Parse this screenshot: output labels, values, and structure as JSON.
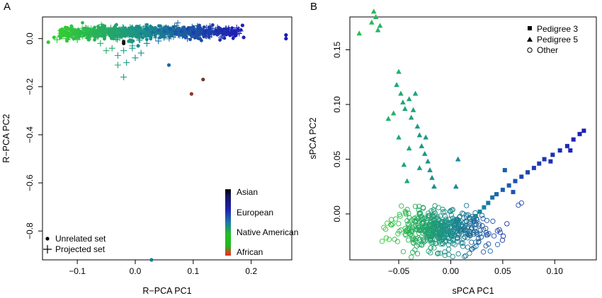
{
  "chart_data": [
    {
      "type": "scatter",
      "panel_label": "A",
      "xlabel": "R−PCA PC1",
      "ylabel": "R−PCA PC2",
      "xlim": [
        -0.16,
        0.27
      ],
      "ylim": [
        -0.92,
        0.09
      ],
      "xticks": [
        -0.1,
        0.0,
        0.1,
        0.2
      ],
      "xtick_labels": [
        "−0.1",
        "0.0",
        "0.1",
        "0.2"
      ],
      "yticks": [
        0.0,
        -0.2,
        -0.4,
        -0.6,
        -0.8
      ],
      "ytick_labels": [
        "0.0",
        "−0.2",
        "−0.4",
        "−0.6",
        "−0.8"
      ],
      "legend": {
        "position": "bottom-left",
        "entries": [
          {
            "label": "Unrelated set",
            "marker": "filled-circle"
          },
          {
            "label": "Projected set",
            "marker": "plus"
          }
        ]
      },
      "colorbar": {
        "position": "bottom-right",
        "labels": [
          "Asian",
          "European",
          "Native American",
          "African"
        ],
        "colors": [
          "#000000",
          "#1f1fb4",
          "#22b822",
          "#ff2020"
        ]
      },
      "series": [
        {
          "marker": "filled-circle",
          "points": [
            [
              -0.15,
              -0.015,
              "#33cc33"
            ],
            [
              -0.14,
              0.005,
              "#33cc33"
            ],
            [
              -0.13,
              0.01,
              "#30c840"
            ],
            [
              -0.11,
              0.015,
              "#2ec24a"
            ],
            [
              -0.09,
              0.02,
              "#2bbd52"
            ],
            [
              -0.08,
              0.04,
              "#2bbd52"
            ],
            [
              -0.06,
              0.02,
              "#26b462"
            ],
            [
              -0.05,
              0.035,
              "#24b06a"
            ],
            [
              -0.03,
              0.025,
              "#20a878"
            ],
            [
              -0.02,
              0.04,
              "#1ea080"
            ],
            [
              -0.01,
              0.03,
              "#1c9888"
            ],
            [
              0.0,
              0.04,
              "#1a9090"
            ],
            [
              0.005,
              0.05,
              "#1a8896"
            ],
            [
              0.01,
              0.02,
              "#18809c"
            ],
            [
              0.02,
              0.04,
              "#1778a2"
            ],
            [
              0.03,
              0.025,
              "#1670a8"
            ],
            [
              0.04,
              0.035,
              "#1868ae"
            ],
            [
              0.05,
              0.03,
              "#1a60b0"
            ],
            [
              0.06,
              0.04,
              "#1c58b2"
            ],
            [
              0.07,
              0.02,
              "#1d50b4"
            ],
            [
              0.08,
              0.03,
              "#1e48b4"
            ],
            [
              0.09,
              0.04,
              "#1e40b4"
            ],
            [
              0.1,
              0.025,
              "#1e38b4"
            ],
            [
              0.12,
              0.03,
              "#1e30b4"
            ],
            [
              0.14,
              0.03,
              "#1e28b4"
            ],
            [
              0.15,
              0.035,
              "#1e24b4"
            ],
            [
              0.17,
              0.025,
              "#1e20b4"
            ],
            [
              0.185,
              0.055,
              "#1e20b4"
            ],
            [
              0.187,
              0.005,
              "#1e20b4"
            ],
            [
              0.26,
              0.015,
              "#1a1ab0"
            ],
            [
              0.26,
              0.0,
              "#1a1ab0"
            ],
            [
              0.005,
              -0.03,
              "#1a8a90"
            ],
            [
              -0.004,
              -0.01,
              "#1b9488"
            ],
            [
              -0.02,
              -0.012,
              "#202020"
            ],
            [
              0.058,
              -0.11,
              "#1f6aa0"
            ],
            [
              0.097,
              -0.23,
              "#8a3a2a"
            ],
            [
              0.117,
              -0.17,
              "#6a3a2a"
            ],
            [
              0.028,
              -0.92,
              "#1a7a8a"
            ],
            [
              -0.02,
              -0.02,
              "#111111"
            ]
          ]
        },
        {
          "marker": "plus",
          "points": [
            [
              -0.135,
              -0.005,
              "#33cc33"
            ],
            [
              -0.12,
              0.0,
              "#30c63c"
            ],
            [
              -0.1,
              -0.005,
              "#2cbe4c"
            ],
            [
              -0.06,
              -0.02,
              "#26b462"
            ],
            [
              -0.05,
              -0.05,
              "#24ac6a"
            ],
            [
              -0.04,
              -0.04,
              "#22a872"
            ],
            [
              -0.03,
              -0.07,
              "#20a47a"
            ],
            [
              -0.02,
              -0.05,
              "#1ea080"
            ],
            [
              -0.015,
              -0.1,
              "#1c9c84"
            ],
            [
              -0.03,
              -0.11,
              "#20a47a"
            ],
            [
              -0.02,
              -0.16,
              "#1c9c84"
            ],
            [
              -0.005,
              -0.04,
              "#1a9688"
            ],
            [
              0.0,
              -0.08,
              "#1a9090"
            ],
            [
              0.01,
              -0.06,
              "#188a94"
            ],
            [
              0.02,
              -0.02,
              "#17829a"
            ],
            [
              0.04,
              -0.01,
              "#1770a8"
            ],
            [
              0.07,
              0.03,
              "#1d4cb4"
            ],
            [
              0.09,
              0.0,
              "#1e40b4"
            ],
            [
              0.12,
              0.02,
              "#1e34b4"
            ],
            [
              0.15,
              0.01,
              "#1e28b4"
            ],
            [
              0.17,
              0.015,
              "#1e20b4"
            ],
            [
              0.175,
              0.045,
              "#1e20b4"
            ],
            [
              -0.005,
              -0.03,
              "#1a9288"
            ]
          ]
        }
      ]
    },
    {
      "type": "scatter",
      "panel_label": "B",
      "xlabel": "sPCA PC1",
      "ylabel": "sPCA PC2",
      "xlim": [
        -0.097,
        0.14
      ],
      "ylim": [
        -0.042,
        0.18
      ],
      "xticks": [
        -0.05,
        0.0,
        0.05,
        0.1
      ],
      "xtick_labels": [
        "−0.05",
        "0.00",
        "0.05",
        "0.10"
      ],
      "yticks": [
        0.0,
        0.05,
        0.1,
        0.15
      ],
      "ytick_labels": [
        "0.00",
        "0.05",
        "0.10",
        "0.15"
      ],
      "legend": {
        "position": "top-right",
        "entries": [
          {
            "label": "Pedigree 3",
            "marker": "filled-square"
          },
          {
            "label": "Pedigree 5",
            "marker": "filled-triangle"
          },
          {
            "label": "Other",
            "marker": "open-circle"
          }
        ]
      },
      "series": [
        {
          "name": "Pedigree 3",
          "marker": "filled-square",
          "points": [
            [
              0.128,
              0.076,
              "#1e20b4"
            ],
            [
              0.124,
              0.073,
              "#1e22b4"
            ],
            [
              0.118,
              0.068,
              "#1e24b4"
            ],
            [
              0.112,
              0.062,
              "#1e28b4"
            ],
            [
              0.105,
              0.058,
              "#1e2cb4"
            ],
            [
              0.098,
              0.054,
              "#1e30b4"
            ],
            [
              0.09,
              0.05,
              "#1e34b4"
            ],
            [
              0.085,
              0.046,
              "#1e38b4"
            ],
            [
              0.08,
              0.042,
              "#1e3cb4"
            ],
            [
              0.074,
              0.038,
              "#1d44b4"
            ],
            [
              0.068,
              0.034,
              "#1d48b4"
            ],
            [
              0.062,
              0.03,
              "#1c50b2"
            ],
            [
              0.056,
              0.026,
              "#1c58b2"
            ],
            [
              0.05,
              0.022,
              "#1a60b0"
            ],
            [
              0.044,
              0.018,
              "#1868ae"
            ],
            [
              0.04,
              0.015,
              "#1770a8"
            ],
            [
              0.036,
              0.01,
              "#1678a4"
            ],
            [
              0.032,
              0.006,
              "#1680a0"
            ],
            [
              0.028,
              0.002,
              "#17889a"
            ],
            [
              0.024,
              -0.002,
              "#188a94"
            ],
            [
              0.052,
              0.04,
              "#1a5cb0"
            ],
            [
              0.115,
              0.058,
              "#1e28b4"
            ],
            [
              0.096,
              0.048,
              "#1e32b4"
            ],
            [
              0.06,
              0.02,
              "#1c54b2"
            ]
          ]
        },
        {
          "name": "Pedigree 5",
          "marker": "filled-triangle",
          "points": [
            [
              -0.088,
              0.165,
              "#2bbd52"
            ],
            [
              -0.076,
              0.175,
              "#28b85a"
            ],
            [
              -0.074,
              0.185,
              "#28b85a"
            ],
            [
              -0.072,
              0.18,
              "#26b462"
            ],
            [
              -0.07,
              0.168,
              "#26b462"
            ],
            [
              -0.068,
              0.172,
              "#26b462"
            ],
            [
              -0.06,
              0.087,
              "#24b06a"
            ],
            [
              -0.055,
              0.092,
              "#24ae6e"
            ],
            [
              -0.052,
              0.118,
              "#22a872"
            ],
            [
              -0.048,
              0.11,
              "#22a872"
            ],
            [
              -0.046,
              0.102,
              "#22a478"
            ],
            [
              -0.044,
              0.096,
              "#22a478"
            ],
            [
              -0.04,
              0.105,
              "#20a47a"
            ],
            [
              -0.038,
              0.088,
              "#20a07e"
            ],
            [
              -0.036,
              0.095,
              "#20a07e"
            ],
            [
              -0.034,
              0.11,
              "#1ea080"
            ],
            [
              -0.032,
              0.08,
              "#1e9c84"
            ],
            [
              -0.03,
              0.072,
              "#1c9a86"
            ],
            [
              -0.028,
              0.062,
              "#1c9888"
            ],
            [
              -0.025,
              0.055,
              "#1c9688"
            ],
            [
              -0.022,
              0.048,
              "#1a9488"
            ],
            [
              -0.02,
              0.04,
              "#1a928c"
            ],
            [
              -0.018,
              0.033,
              "#1a908e"
            ],
            [
              -0.016,
              0.025,
              "#1a8e90"
            ],
            [
              -0.04,
              0.06,
              "#20a47a"
            ],
            [
              -0.045,
              0.045,
              "#22a478"
            ],
            [
              -0.05,
              0.07,
              "#22a872"
            ],
            [
              -0.042,
              0.03,
              "#22a478"
            ],
            [
              -0.03,
              0.042,
              "#1e9c84"
            ],
            [
              -0.024,
              0.07,
              "#1c9888"
            ],
            [
              -0.05,
              0.13,
              "#24ae6e"
            ],
            [
              0.005,
              0.025,
              "#188a94"
            ],
            [
              0.007,
              0.05,
              "#1888a0"
            ]
          ]
        },
        {
          "name": "Other",
          "marker": "open-circle",
          "cloud": {
            "count": 520,
            "x_range": [
              -0.065,
              0.065
            ],
            "y_range": [
              -0.04,
              0.008
            ]
          },
          "extra_points": [
            [
              -0.062,
              -0.022,
              "#33cc33"
            ],
            [
              -0.066,
              -0.025,
              "#33cc33"
            ],
            [
              0.068,
              0.01,
              "#1e48b4"
            ],
            [
              0.065,
              0.008,
              "#1e48b4"
            ],
            [
              0.038,
              -0.034,
              "#1668a8"
            ],
            [
              0.045,
              -0.028,
              "#1a60b0"
            ],
            [
              0.018,
              -0.036,
              "#18809c"
            ]
          ]
        }
      ]
    }
  ]
}
